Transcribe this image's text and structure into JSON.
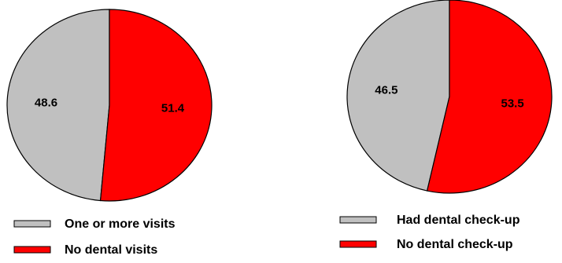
{
  "chart_data": [
    {
      "type": "pie",
      "slices": [
        {
          "label": "One or more visits",
          "value": 48.6,
          "color": "#c0c0c0"
        },
        {
          "label": "No dental visits",
          "value": 51.4,
          "color": "#ff0000"
        }
      ],
      "data_labels": [
        "48.6",
        "51.4"
      ],
      "legend": [
        "One or more visits",
        "No dental visits"
      ],
      "legend_placement": "bottom"
    },
    {
      "type": "pie",
      "slices": [
        {
          "label": "Had dental check-up",
          "value": 46.5,
          "color": "#c0c0c0"
        },
        {
          "label": "No dental check-up",
          "value": 53.5,
          "color": "#ff0000"
        }
      ],
      "data_labels": [
        "46.5",
        "53.5"
      ],
      "legend": [
        "Had dental check-up",
        "No dental check-up"
      ],
      "legend_placement": "bottom"
    }
  ]
}
